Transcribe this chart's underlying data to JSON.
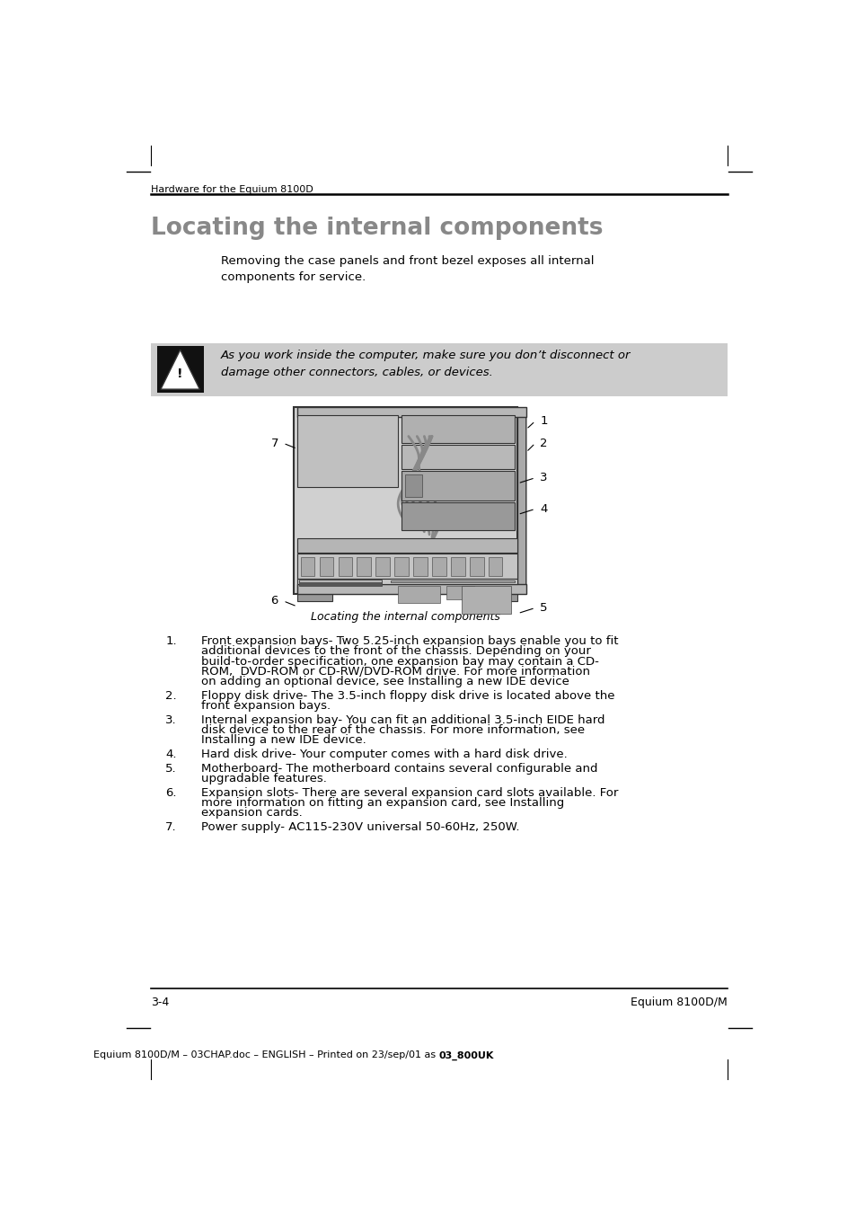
{
  "page_bg": "#ffffff",
  "header_text": "Hardware for the Equium 8100D",
  "title": "Locating the internal components",
  "title_color": "#888888",
  "intro_text": "Removing the case panels and front bezel exposes all internal\ncomponents for service.",
  "warning_bg": "#cccccc",
  "warning_text": "As you work inside the computer, make sure you don’t disconnect or\ndamage other connectors, cables, or devices.",
  "figure_caption": "Locating the internal components",
  "footer_left": "3-4",
  "footer_right": "Equium 8100D/M",
  "footer_center_normal": "Equium 8100D/M – 03CHAP.doc – ENGLISH – Printed on 23/sep/01 as ",
  "footer_center_bold": "03_800UK",
  "list_items": [
    [
      "Front expansion bays-",
      " Two 5.25-inch expansion bays enable you to fit\nadditional devices to the front of the chassis. Depending on your\nbuild-to-order specification, one expansion bay may contain a CD-\nROM,  DVD-ROM or CD-RW/DVD-ROM drive. For more information\non adding an optional device, see Installing a new IDE device"
    ],
    [
      "Floppy disk drive-",
      " The 3.5-inch floppy disk drive is located above the\nfront expansion bays."
    ],
    [
      "Internal expansion bay-",
      " You can fit an additional 3.5-inch EIDE hard\ndisk device to the rear of the chassis. For more information, see\nInstalling a new IDE device."
    ],
    [
      "Hard disk drive-",
      " Your computer comes with a hard disk drive."
    ],
    [
      "Motherboard-",
      " The motherboard contains several configurable and\nupgradable features."
    ],
    [
      "Expansion slots-",
      " There are several expansion card slots available. For\nmore information on fitting an expansion card, see Installing\nexpansion cards."
    ],
    [
      "Power supply-",
      " AC115-230V universal 50-60Hz, 250W."
    ]
  ]
}
